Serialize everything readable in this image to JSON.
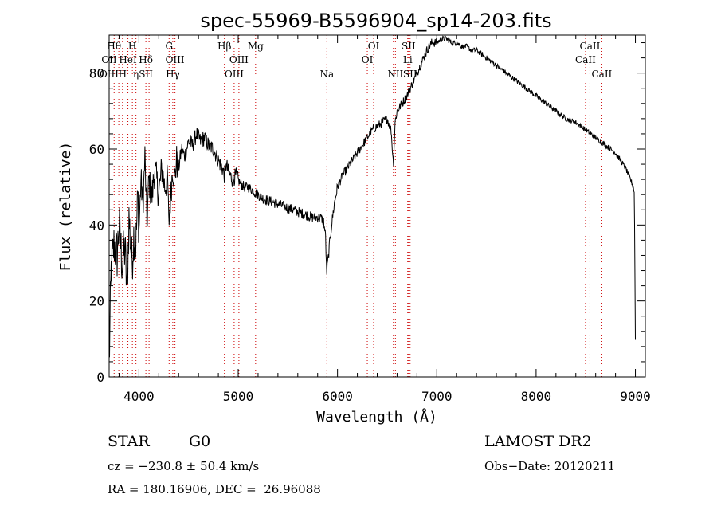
{
  "chart_data": {
    "type": "line",
    "title": "spec-55969-B5596904_sp14-203.fits",
    "xlabel": "Wavelength (Å)",
    "ylabel": "Flux (relative)",
    "xlim": [
      3700,
      9100
    ],
    "ylim": [
      0,
      90
    ],
    "xticks": [
      4000,
      5000,
      6000,
      7000,
      8000,
      9000
    ],
    "yticks": [
      0,
      20,
      40,
      60,
      80
    ],
    "grid": false,
    "series": [
      {
        "x": [
          3700,
          3720,
          3750,
          3780,
          3800,
          3830,
          3860,
          3880,
          3900,
          3930,
          3950,
          3970,
          3990,
          4000,
          4020,
          4040,
          4060,
          4080,
          4100,
          4130,
          4160,
          4200,
          4230,
          4260,
          4290,
          4300,
          4320,
          4340,
          4360,
          4380,
          4400,
          4430,
          4460,
          4500,
          4540,
          4580,
          4620,
          4660,
          4700,
          4750,
          4800,
          4840,
          4860,
          4880,
          4900,
          4940,
          4980,
          5020,
          5060,
          5100,
          5150,
          5200,
          5250,
          5300,
          5350,
          5400,
          5450,
          5500,
          5550,
          5600,
          5650,
          5700,
          5750,
          5800,
          5830,
          5860,
          5880,
          5890,
          5900,
          5910,
          5920,
          5940,
          5970,
          6000,
          6050,
          6100,
          6150,
          6200,
          6250,
          6300,
          6350,
          6400,
          6450,
          6500,
          6540,
          6563,
          6580,
          6600,
          6650,
          6700,
          6750,
          6800,
          6850,
          6900,
          6950,
          7000,
          7050,
          7100,
          7150,
          7200,
          7250,
          7300,
          7350,
          7400,
          7450,
          7500,
          7550,
          7600,
          7650,
          7700,
          7800,
          7900,
          8000,
          8100,
          8200,
          8300,
          8400,
          8450,
          8500,
          8550,
          8600,
          8650,
          8700,
          8750,
          8800,
          8850,
          8900,
          8950,
          8980,
          8990,
          9000
        ],
        "y": [
          3,
          28,
          35,
          32,
          40,
          30,
          34,
          22,
          42,
          30,
          38,
          35,
          48,
          38,
          52,
          45,
          58,
          40,
          52,
          47,
          55,
          48,
          55,
          50,
          52,
          40,
          48,
          55,
          52,
          57,
          55,
          60,
          58,
          62,
          61,
          64,
          62,
          63,
          61,
          60,
          57,
          55,
          53,
          56,
          54,
          52,
          53,
          51,
          50,
          50,
          49,
          48,
          47,
          46.5,
          46,
          45.5,
          45,
          44.5,
          44,
          43.5,
          43,
          42.5,
          42,
          42,
          42,
          41,
          37,
          27,
          30,
          32,
          35,
          40,
          46,
          50,
          53,
          55,
          57,
          59,
          61,
          63,
          65,
          66,
          67,
          68,
          65,
          56,
          67,
          70,
          72,
          74,
          77,
          80,
          83,
          86,
          88,
          88,
          89,
          89,
          88,
          88,
          87,
          87,
          86,
          86,
          85,
          84,
          83,
          82,
          81,
          80,
          78,
          76,
          74,
          72,
          70,
          68,
          67,
          66,
          65,
          64,
          63,
          62,
          61,
          60,
          59,
          57,
          55,
          52,
          50,
          48,
          10
        ]
      }
    ],
    "lines": [
      {
        "x": 3700,
        "labels": [
          {
            "text": "OII",
            "row": 1
          },
          {
            "text": "OIII",
            "row": 2
          }
        ]
      },
      {
        "x": 3750,
        "labels": [
          {
            "text": "Hθ",
            "row": 0
          }
        ]
      },
      {
        "x": 3797,
        "labels": []
      },
      {
        "x": 3835,
        "labels": [
          {
            "text": "H",
            "row": 2
          }
        ]
      },
      {
        "x": 3889,
        "labels": [
          {
            "text": "HeI",
            "row": 1
          }
        ]
      },
      {
        "x": 3934,
        "labels": [
          {
            "text": "H",
            "row": 0
          }
        ]
      },
      {
        "x": 3970,
        "labels": [
          {
            "text": "η",
            "row": 2
          }
        ]
      },
      {
        "x": 4070,
        "labels": [
          {
            "text": "Hδ",
            "row": 1
          },
          {
            "text": "SII",
            "row": 2
          }
        ]
      },
      {
        "x": 4102,
        "labels": []
      },
      {
        "x": 4304,
        "labels": [
          {
            "text": "G",
            "row": 0
          }
        ]
      },
      {
        "x": 4341,
        "labels": [
          {
            "text": "Hγ",
            "row": 2
          }
        ]
      },
      {
        "x": 4363,
        "labels": [
          {
            "text": "OIII",
            "row": 1
          }
        ]
      },
      {
        "x": 4861,
        "labels": [
          {
            "text": "Hβ",
            "row": 0
          }
        ]
      },
      {
        "x": 4959,
        "labels": [
          {
            "text": "OIII",
            "row": 2
          }
        ]
      },
      {
        "x": 5007,
        "labels": [
          {
            "text": "OIII",
            "row": 1
          }
        ]
      },
      {
        "x": 5175,
        "labels": [
          {
            "text": "Mg",
            "row": 0
          }
        ]
      },
      {
        "x": 5893,
        "labels": [
          {
            "text": "Na",
            "row": 2
          }
        ]
      },
      {
        "x": 6300,
        "labels": [
          {
            "text": "OI",
            "row": 1
          }
        ]
      },
      {
        "x": 6364,
        "labels": [
          {
            "text": "OI",
            "row": 0
          }
        ]
      },
      {
        "x": 6563,
        "labels": []
      },
      {
        "x": 6583,
        "labels": [
          {
            "text": "NII",
            "row": 2
          }
        ]
      },
      {
        "x": 6707,
        "labels": [
          {
            "text": "Li",
            "row": 1
          }
        ]
      },
      {
        "x": 6716,
        "labels": [
          {
            "text": "SII",
            "row": 0
          }
        ]
      },
      {
        "x": 6731,
        "labels": [
          {
            "text": "SII",
            "row": 2
          }
        ]
      },
      {
        "x": 8498,
        "labels": [
          {
            "text": "CaII",
            "row": 1
          }
        ]
      },
      {
        "x": 8542,
        "labels": [
          {
            "text": "CaII",
            "row": 0
          }
        ]
      },
      {
        "x": 8662,
        "labels": [
          {
            "text": "CaII",
            "row": 2
          }
        ]
      }
    ]
  },
  "info": {
    "class_text": "STAR",
    "subclass_text": "G0",
    "survey_text": "LAMOST DR2",
    "cz_text": "cz = −230.8 ± 50.4 km/s",
    "obs_text": "Obs−Date: 20120211",
    "radec_text": "RA = 180.16906, DEC =  26.96088"
  },
  "colors": {
    "axis": "#000000",
    "spectrum": "#000000",
    "line_marker": "#cc0000"
  }
}
